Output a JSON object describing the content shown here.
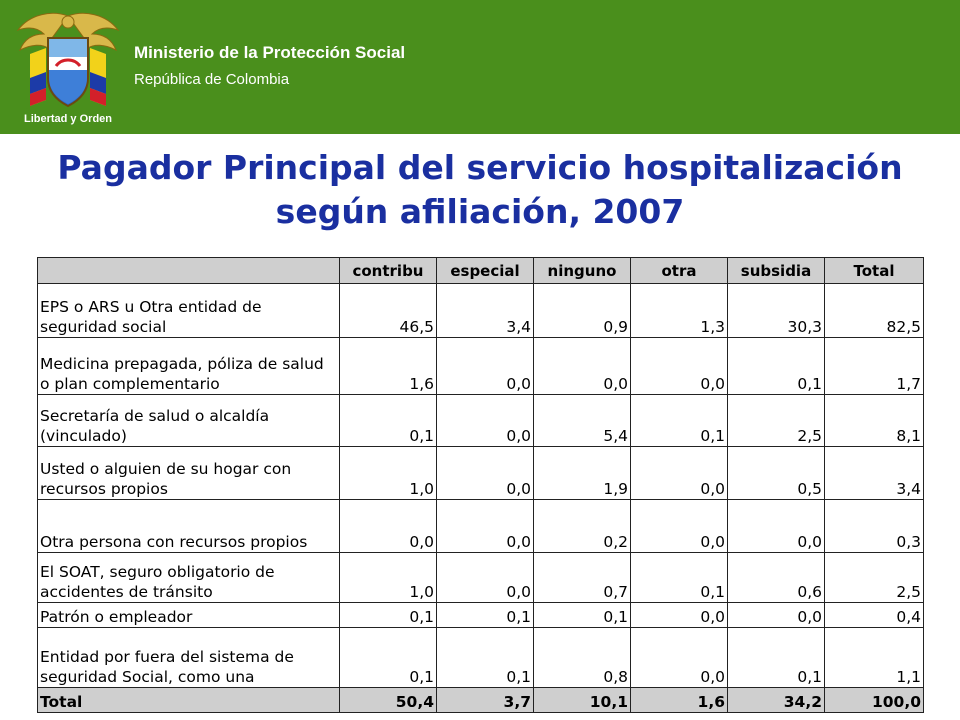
{
  "header": {
    "ministry": "Ministerio de la Protección Social",
    "republic": "República de Colombia",
    "logo_motto": "Libertad y Orden",
    "bar_color": "#4a8f1c"
  },
  "title": {
    "line1": "Pagador Principal del servicio hospitalización",
    "line2": "según afiliación, 2007",
    "color": "#1a2fa0"
  },
  "table": {
    "columns": [
      "contribu",
      "especial",
      "ninguno",
      "otra",
      "subsidia",
      "Total"
    ],
    "rows": [
      {
        "label": "EPS o ARS u Otra entidad de seguridad social",
        "values": [
          "46,5",
          "3,4",
          "0,9",
          "1,3",
          "30,3",
          "82,5"
        ]
      },
      {
        "label": "Medicina prepagada, póliza de salud o plan complementario",
        "values": [
          "1,6",
          "0,0",
          "0,0",
          "0,0",
          "0,1",
          "1,7"
        ]
      },
      {
        "label": "Secretaría de salud o alcaldía (vinculado)",
        "values": [
          "0,1",
          "0,0",
          "5,4",
          "0,1",
          "2,5",
          "8,1"
        ]
      },
      {
        "label": "Usted o alguien de su hogar con recursos propios",
        "values": [
          "1,0",
          "0,0",
          "1,9",
          "0,0",
          "0,5",
          "3,4"
        ]
      },
      {
        "label": "Otra persona con recursos propios",
        "values": [
          "0,0",
          "0,0",
          "0,2",
          "0,0",
          "0,0",
          "0,3"
        ]
      },
      {
        "label": "El SOAT, seguro obligatorio de accidentes de tránsito",
        "values": [
          "1,0",
          "0,0",
          "0,7",
          "0,1",
          "0,6",
          "2,5"
        ]
      },
      {
        "label": "Patrón o empleador",
        "values": [
          "0,1",
          "0,1",
          "0,1",
          "0,0",
          "0,0",
          "0,4"
        ]
      },
      {
        "label": "Entidad por fuera del sistema de seguridad  Social, como una",
        "values": [
          "0,1",
          "0,1",
          "0,8",
          "0,0",
          "0,1",
          "1,1"
        ]
      }
    ],
    "total": {
      "label": "Total",
      "values": [
        "50,4",
        "3,7",
        "10,1",
        "1,6",
        "34,2",
        "100,0"
      ]
    }
  }
}
